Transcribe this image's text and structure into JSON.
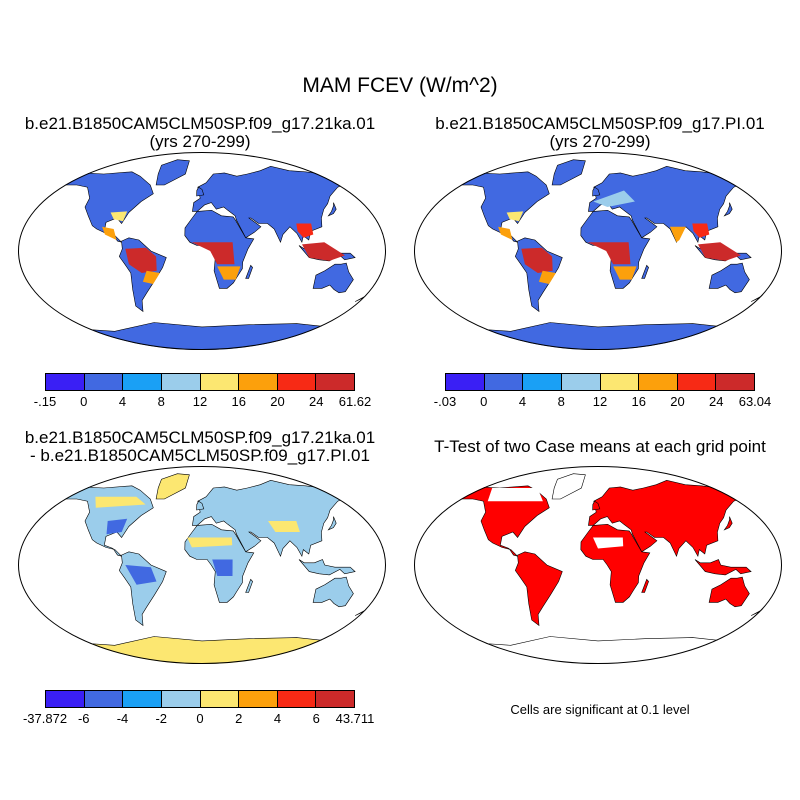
{
  "main_title": "MAM FCEV (W/m^2)",
  "panels": [
    {
      "id": "21ka",
      "title": "b.e21.B1850CAM5CLM50SP.f09_g17.21ka.01",
      "subtitle": "(yrs 270-299)"
    },
    {
      "id": "pi",
      "title": "b.e21.B1850CAM5CLM50SP.f09_g17.PI.01",
      "subtitle": "(yrs 270-299)"
    },
    {
      "id": "diff",
      "title": "b.e21.B1850CAM5CLM50SP.f09_g17.21ka.01",
      "subtitle": "- b.e21.B1850CAM5CLM50SP.f09_g17.PI.01"
    },
    {
      "id": "ttest",
      "title": "T-Test of two Case means at each grid point",
      "subtitle": ""
    }
  ],
  "colorbars": {
    "abs_colors": [
      "#3a1ff5",
      "#4169e1",
      "#1aa0f5",
      "#9bcdeb",
      "#fce771",
      "#fca00c",
      "#f72a15",
      "#cc2a2a"
    ],
    "diff_colors": [
      "#3a1ff5",
      "#4169e1",
      "#1aa0f5",
      "#9bcdeb",
      "#fce771",
      "#fca00c",
      "#f72a15",
      "#cc2a2a"
    ],
    "cb1_labels": [
      "-.15",
      "0",
      "4",
      "8",
      "12",
      "16",
      "20",
      "24",
      "61.62"
    ],
    "cb2_labels": [
      "-.03",
      "0",
      "4",
      "8",
      "12",
      "16",
      "20",
      "24",
      "63.04"
    ],
    "cb3_labels": [
      "-37.872",
      "-6",
      "-4",
      "-2",
      "0",
      "2",
      "4",
      "6",
      "43.711"
    ]
  },
  "significance_note": "Cells are significant at 0.1 level",
  "significance_color": "#ff0000",
  "map_style": {
    "ocean": "#ffffff",
    "coast": "#000000"
  }
}
